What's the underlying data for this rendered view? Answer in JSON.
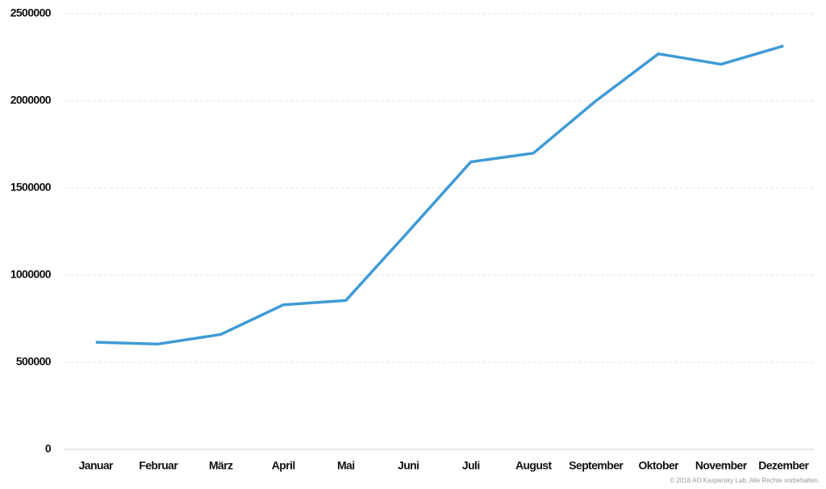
{
  "chart_data": {
    "type": "line",
    "categories": [
      "Januar",
      "Februar",
      "März",
      "April",
      "Mai",
      "Juni",
      "Juli",
      "August",
      "September",
      "Oktober",
      "November",
      "Dezember"
    ],
    "series": [
      {
        "color": "#3f9bd6",
        "values": [
          615000,
          605000,
          660000,
          830000,
          855000,
          1250000,
          1650000,
          1700000,
          2000000,
          2270000,
          2210000,
          2315000
        ]
      }
    ],
    "ylim": [
      0,
      2500000
    ],
    "yticks": [
      0,
      500000,
      1000000,
      1500000,
      2000000,
      2500000
    ],
    "grid": true,
    "footnote": "© 2016 AO Kaspersky Lab. Alle Rechte vorbehalten."
  }
}
